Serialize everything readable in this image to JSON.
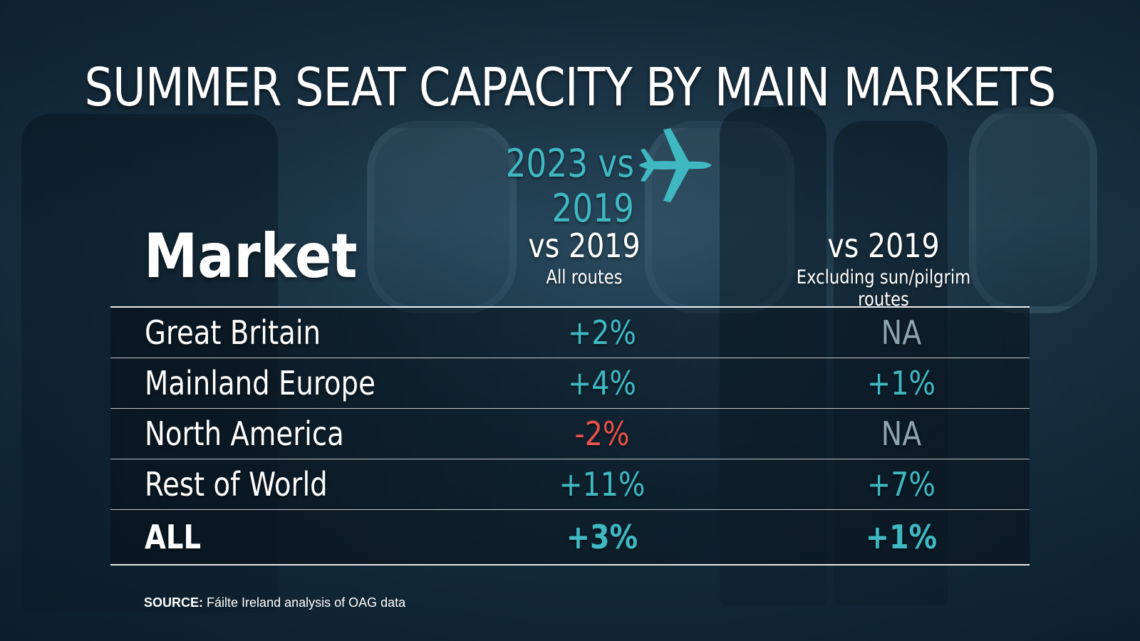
{
  "title": "SUMMER SEAT CAPACITY BY MAIN MARKETS",
  "subtitle": "2023 vs 2019",
  "icon": "airplane-icon",
  "colors": {
    "accent": "#3fb8c2",
    "negative": "#e8524a",
    "na": "#8ea3b0",
    "text": "#ffffff",
    "background": "#1b3547"
  },
  "chart_data": {
    "type": "table",
    "columns": [
      {
        "label": "Market",
        "sublabel": ""
      },
      {
        "label": "vs 2019",
        "sublabel": "All routes"
      },
      {
        "label": "vs 2019",
        "sublabel": "Excluding sun/pilgrim routes"
      }
    ],
    "rows": [
      {
        "market": "Great Britain",
        "all_routes": "+2%",
        "excl_sun_pilgrim": "NA"
      },
      {
        "market": "Mainland Europe",
        "all_routes": "+4%",
        "excl_sun_pilgrim": "+1%"
      },
      {
        "market": "North America",
        "all_routes": "-2%",
        "excl_sun_pilgrim": "NA"
      },
      {
        "market": "Rest of World",
        "all_routes": "+11%",
        "excl_sun_pilgrim": "+7%"
      },
      {
        "market": "ALL",
        "all_routes": "+3%",
        "excl_sun_pilgrim": "+1%"
      }
    ]
  },
  "source": {
    "label": "SOURCE:",
    "text": "Fáilte Ireland analysis of OAG data"
  }
}
